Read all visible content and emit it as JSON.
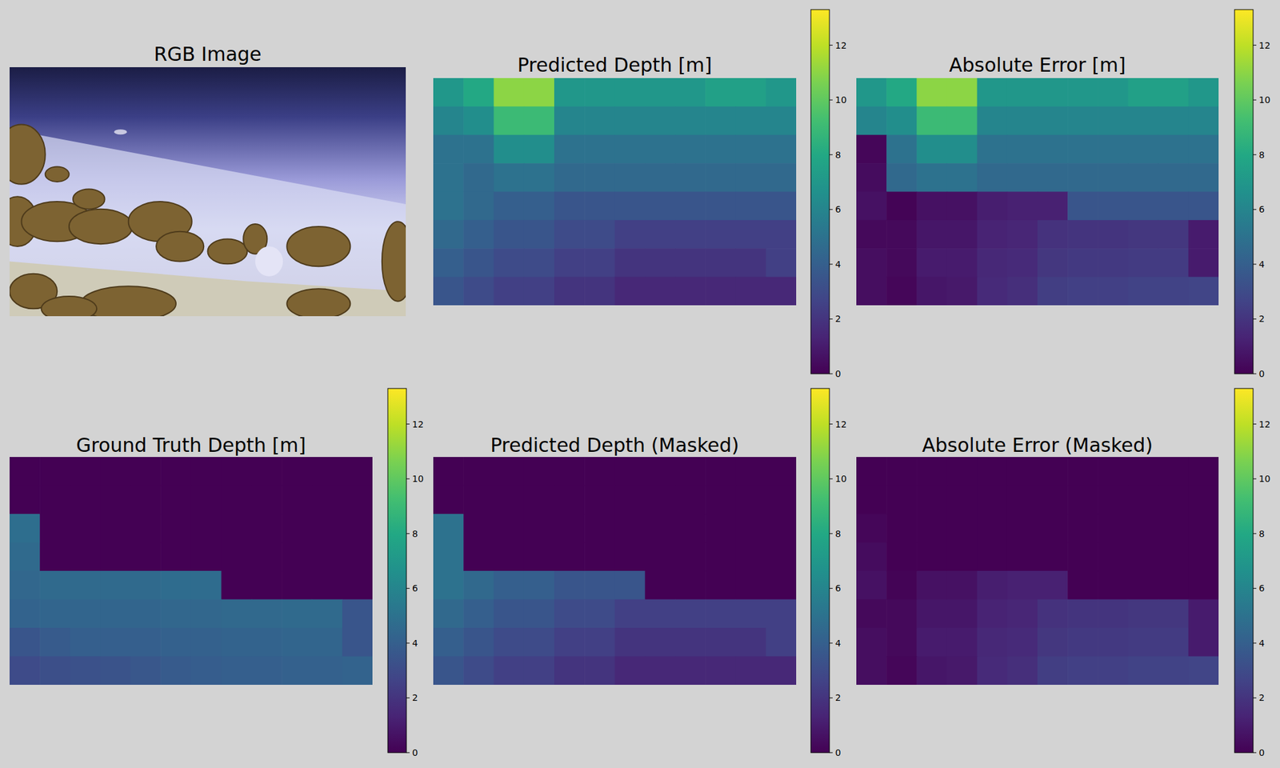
{
  "chart_data": [
    {
      "type": "image",
      "title": "RGB Image",
      "tick_labels": false
    },
    {
      "type": "heatmap",
      "title": "Predicted Depth [m]",
      "tick_labels": false,
      "colorbar_range": [
        0,
        13.3
      ],
      "colorbar_ticks": [
        0,
        2,
        4,
        6,
        8,
        10,
        12
      ],
      "values": [
        [
          7,
          8,
          11,
          11,
          7,
          7,
          7,
          7,
          7,
          7.5,
          7.5,
          7
        ],
        [
          6,
          6.5,
          9,
          9,
          6,
          6,
          6,
          6,
          6,
          6,
          6,
          6
        ],
        [
          5,
          5,
          6.5,
          6.5,
          5,
          5,
          5,
          5,
          5,
          5,
          5,
          5
        ],
        [
          5,
          4.5,
          5,
          5,
          4.5,
          4.5,
          4.5,
          4.5,
          4.5,
          4.5,
          4.5,
          4.5
        ],
        [
          5,
          4.5,
          4,
          4,
          3.5,
          3.5,
          3.5,
          3.5,
          3.5,
          3.5,
          3.5,
          3.5
        ],
        [
          4.5,
          4,
          3.5,
          3.5,
          3,
          3,
          2.5,
          2.5,
          2.5,
          2.5,
          2.5,
          2.5
        ],
        [
          4,
          3.5,
          3,
          3,
          2.5,
          2.5,
          2,
          2,
          2,
          2,
          2,
          2.5
        ],
        [
          3.5,
          3,
          2.5,
          2.5,
          2,
          2,
          1.5,
          1.5,
          1.5,
          1.5,
          1.5,
          1.5
        ]
      ]
    },
    {
      "type": "heatmap",
      "title": "Absolute Error [m]",
      "tick_labels": false,
      "colorbar_range": [
        0,
        13.3
      ],
      "colorbar_ticks": [
        0,
        2,
        4,
        6,
        8,
        10,
        12
      ],
      "values": [
        [
          7,
          8,
          11,
          11,
          7,
          7,
          7,
          7,
          7,
          7.5,
          7.5,
          7
        ],
        [
          6,
          6.5,
          9,
          9,
          6,
          6,
          6,
          6,
          6,
          6,
          6,
          6
        ],
        [
          0.2,
          5,
          6.5,
          6.5,
          5,
          5,
          5,
          5,
          5,
          5,
          5,
          5
        ],
        [
          0.4,
          4.5,
          5,
          5,
          4.5,
          4.5,
          4.5,
          4.5,
          4.5,
          4.5,
          4.5,
          4.5
        ],
        [
          0.6,
          0.1,
          0.6,
          0.6,
          1.1,
          1.2,
          1.2,
          3.5,
          3.5,
          3.5,
          3.5,
          3.5
        ],
        [
          0.3,
          0.3,
          0.8,
          0.8,
          1.3,
          1.4,
          1.9,
          2,
          2,
          2.1,
          2.1,
          1
        ],
        [
          0.5,
          0.3,
          1,
          1,
          1.5,
          1.6,
          2.1,
          2.2,
          2.2,
          2.3,
          2.3,
          1
        ],
        [
          0.5,
          0.2,
          0.8,
          0.9,
          1.6,
          1.8,
          2.4,
          2.5,
          2.5,
          2.6,
          2.6,
          2.7
        ]
      ]
    },
    {
      "type": "heatmap",
      "title": "Ground Truth Depth [m]",
      "tick_labels": false,
      "colorbar_range": [
        0,
        13.3
      ],
      "colorbar_ticks": [
        0,
        2,
        4,
        6,
        8,
        10,
        12
      ],
      "values": [
        [
          0,
          0,
          0,
          0,
          0,
          0,
          0,
          0,
          0,
          0,
          0,
          0
        ],
        [
          0,
          0,
          0,
          0,
          0,
          0,
          0,
          0,
          0,
          0,
          0,
          0
        ],
        [
          4.8,
          0,
          0,
          0,
          0,
          0,
          0,
          0,
          0,
          0,
          0,
          0
        ],
        [
          4.6,
          0,
          0,
          0,
          0,
          0,
          0,
          0,
          0,
          0,
          0,
          0
        ],
        [
          4.4,
          4.6,
          4.6,
          4.6,
          4.6,
          4.7,
          4.7,
          0,
          0,
          0,
          0,
          0
        ],
        [
          4.2,
          4.3,
          4.3,
          4.3,
          4.3,
          4.4,
          4.4,
          4.5,
          4.5,
          4.6,
          4.6,
          3.5
        ],
        [
          3.5,
          3.8,
          4,
          4,
          4,
          4.1,
          4.1,
          4.2,
          4.2,
          4.3,
          4.3,
          3.5
        ],
        [
          3,
          3.2,
          3.3,
          3.4,
          3.6,
          3.8,
          3.9,
          4,
          4,
          4.1,
          4.1,
          4.2
        ]
      ]
    },
    {
      "type": "heatmap",
      "title": "Predicted Depth (Masked)",
      "tick_labels": false,
      "colorbar_range": [
        0,
        13.3
      ],
      "colorbar_ticks": [
        0,
        2,
        4,
        6,
        8,
        10,
        12
      ],
      "values": [
        [
          0,
          0,
          0,
          0,
          0,
          0,
          0,
          0,
          0,
          0,
          0,
          0
        ],
        [
          0,
          0,
          0,
          0,
          0,
          0,
          0,
          0,
          0,
          0,
          0,
          0
        ],
        [
          5,
          0,
          0,
          0,
          0,
          0,
          0,
          0,
          0,
          0,
          0,
          0
        ],
        [
          5,
          0,
          0,
          0,
          0,
          0,
          0,
          0,
          0,
          0,
          0,
          0
        ],
        [
          5,
          4.5,
          4,
          4,
          3.5,
          3.5,
          3.5,
          0,
          0,
          0,
          0,
          0
        ],
        [
          4.5,
          4,
          3.5,
          3.5,
          3,
          3,
          2.5,
          2.5,
          2.5,
          2.5,
          2.5,
          2.5
        ],
        [
          4,
          3.5,
          3,
          3,
          2.5,
          2.5,
          2,
          2,
          2,
          2,
          2,
          2.5
        ],
        [
          3.5,
          3,
          2.5,
          2.5,
          2,
          2,
          1.5,
          1.5,
          1.5,
          1.5,
          1.5,
          1.5
        ]
      ]
    },
    {
      "type": "heatmap",
      "title": "Absolute Error (Masked)",
      "tick_labels": false,
      "colorbar_range": [
        0,
        13.3
      ],
      "colorbar_ticks": [
        0,
        2,
        4,
        6,
        8,
        10,
        12
      ],
      "values": [
        [
          0,
          0,
          0,
          0,
          0,
          0,
          0,
          0,
          0,
          0,
          0,
          0
        ],
        [
          0,
          0,
          0,
          0,
          0,
          0,
          0,
          0,
          0,
          0,
          0,
          0
        ],
        [
          0.2,
          0,
          0,
          0,
          0,
          0,
          0,
          0,
          0,
          0,
          0,
          0
        ],
        [
          0.4,
          0,
          0,
          0,
          0,
          0,
          0,
          0,
          0,
          0,
          0,
          0
        ],
        [
          0.6,
          0.1,
          0.6,
          0.6,
          1.1,
          1.2,
          1.2,
          0,
          0,
          0,
          0,
          0
        ],
        [
          0.3,
          0.3,
          0.8,
          0.8,
          1.3,
          1.4,
          1.9,
          2,
          2,
          2.1,
          2.1,
          1
        ],
        [
          0.5,
          0.3,
          1,
          1,
          1.5,
          1.6,
          2.1,
          2.2,
          2.2,
          2.3,
          2.3,
          1
        ],
        [
          0.5,
          0.2,
          0.8,
          0.9,
          1.6,
          1.8,
          2.4,
          2.5,
          2.5,
          2.6,
          2.6,
          2.7
        ]
      ]
    }
  ]
}
